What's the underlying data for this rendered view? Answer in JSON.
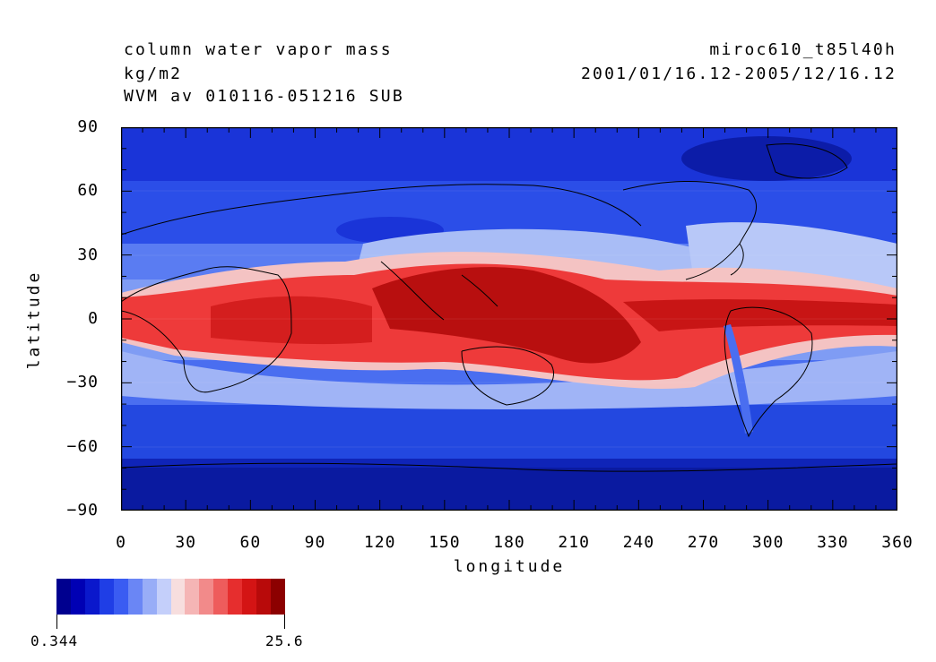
{
  "header": {
    "variable": "column water vapor mass",
    "units": "kg/m2",
    "description": "WVM av 010116-051216 SUB",
    "model": "miroc610_t85l40h",
    "period": "2001/01/16.12-2005/12/16.12"
  },
  "axes": {
    "xlabel": "longitude",
    "ylabel": "latitude",
    "x_ticks": [
      "0",
      "30",
      "60",
      "90",
      "120",
      "150",
      "180",
      "210",
      "240",
      "270",
      "300",
      "330",
      "360"
    ],
    "y_ticks": [
      "90",
      "60",
      "30",
      "0",
      "−30",
      "−60",
      "−90"
    ],
    "xlim": [
      0,
      360
    ],
    "ylim": [
      -90,
      90
    ]
  },
  "colorbar": {
    "min_label": "0.344",
    "max_label": "25.6",
    "colors": [
      "#00008f",
      "#0000b4",
      "#0a18cc",
      "#1f3ee6",
      "#3a5cf2",
      "#6a86f5",
      "#98adf7",
      "#c4cffa",
      "#f7dede",
      "#f5b5b5",
      "#f28a8a",
      "#ee5c5c",
      "#e62e2e",
      "#d41414",
      "#b80a0a",
      "#8c0000"
    ]
  },
  "map": {
    "palette": {
      "deep_blue": "#0c1ea0",
      "blue": "#1a3fe0",
      "mid_blue": "#4a6ef0",
      "light_blue": "#a9bdf6",
      "pale_red": "#f4c3c3",
      "red": "#ee3a3a",
      "deep_red": "#b80f0f"
    }
  }
}
